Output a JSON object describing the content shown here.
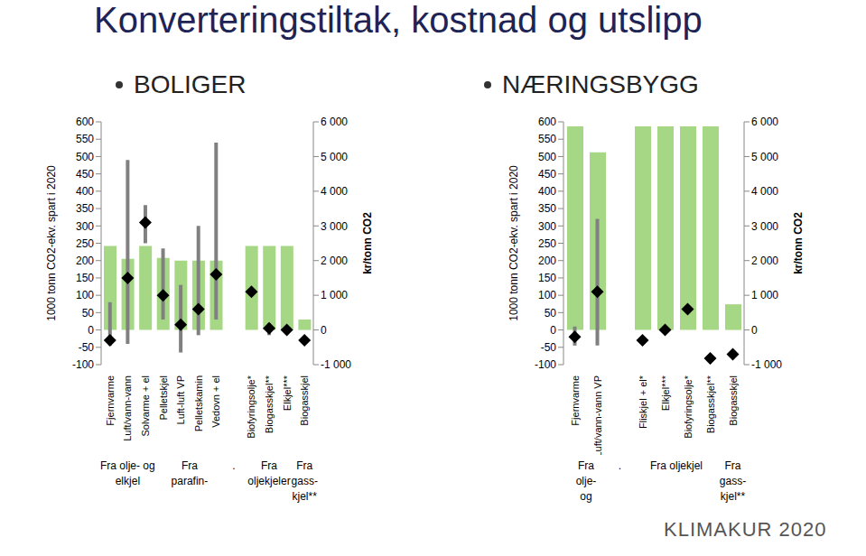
{
  "title": "Konverteringstiltak, kostnad og utslipp",
  "footer": "KLIMAKUR 2020",
  "chart_data": [
    {
      "type": "bar",
      "title": "BOLIGER",
      "ylabel": "1000 tonn CO2-ekv. spart i 2020",
      "y2label": "kr/tonn CO2",
      "categories": [
        "Fjernvarme",
        "Luft/vann-vann",
        "Solvarme + el",
        "Pelletskjel",
        "Luft-luft VP",
        "Pelletskamin",
        "Vedovn + el",
        null,
        "Biofyringsolje*",
        "Biogasskjel**",
        "Elkjel***",
        "Biogasskjel"
      ],
      "values": [
        242,
        205,
        242,
        208,
        200,
        200,
        200,
        null,
        242,
        242,
        242,
        30
      ],
      "color": "#a6d785",
      "cost": [
        -300,
        1500,
        3100,
        1000,
        150,
        600,
        1600,
        null,
        1100,
        50,
        0,
        -300
      ],
      "cost_low": [
        -450,
        -400,
        2500,
        300,
        -650,
        -150,
        300,
        null,
        null,
        -150,
        null,
        null
      ],
      "cost_high": [
        800,
        4900,
        3600,
        2350,
        1300,
        3000,
        5400,
        null,
        null,
        200,
        null,
        null
      ],
      "cost_color": "#000000",
      "range_color": "#808080",
      "ylim": [
        -100,
        600
      ],
      "yticks": [
        -100,
        -50,
        0,
        50,
        100,
        150,
        200,
        250,
        300,
        350,
        400,
        450,
        500,
        550,
        600
      ],
      "y2lim": [
        -1000,
        6000
      ],
      "y2ticks": [
        {
          "value": -1000,
          "label": "-1 000"
        },
        0,
        {
          "value": 1000,
          "label": "1 000"
        },
        {
          "value": 2000,
          "label": "2 000"
        },
        {
          "value": 3000,
          "label": "3 000"
        },
        {
          "value": 4000,
          "label": "4 000"
        },
        {
          "value": 5000,
          "label": "5 000"
        },
        {
          "value": 6000,
          "label": "6 000"
        }
      ],
      "groups": [
        {
          "label": [
            "Fra olje- og",
            "elkjel"
          ],
          "start": 0,
          "end": 2
        },
        {
          "label": [
            "Fra",
            "parafin-"
          ],
          "start": 3,
          "end": 6
        },
        {
          "label": [
            "."
          ],
          "start": 7,
          "end": 7
        },
        {
          "label": [
            "Fra",
            "oljekjeler"
          ],
          "start": 8,
          "end": 10
        },
        {
          "label": [
            "Fra",
            "gass-",
            "kjel**"
          ],
          "start": 11,
          "end": 11
        }
      ]
    },
    {
      "type": "bar",
      "title": "NÆRINGSBYGG",
      "ylabel": "1000 tonn CO2-ekv. spart i 2020",
      "y2label": "kr/tonn CO2",
      "categories": [
        "Fjernvarme",
        "Luft/vann-vann VP",
        null,
        "Fliskjel + el*",
        "Elkjel***",
        "Biofyringsolje*",
        "Biogasskjel**",
        "Biogasskjel"
      ],
      "values": [
        587,
        512,
        null,
        587,
        587,
        587,
        587,
        74
      ],
      "color": "#a6d785",
      "cost": [
        -200,
        1100,
        null,
        -300,
        0,
        600,
        -820,
        -700
      ],
      "cost_low": [
        -450,
        -450,
        null,
        null,
        null,
        null,
        null,
        null
      ],
      "cost_high": [
        100,
        3200,
        null,
        null,
        null,
        null,
        null,
        null
      ],
      "cost_color": "#000000",
      "range_color": "#808080",
      "ylim": [
        -100,
        600
      ],
      "yticks": [
        -100,
        -50,
        0,
        50,
        100,
        150,
        200,
        250,
        300,
        350,
        400,
        450,
        500,
        550,
        600
      ],
      "y2lim": [
        -1000,
        6000
      ],
      "y2ticks": [
        {
          "value": -1000,
          "label": "-1 000"
        },
        0,
        {
          "value": 1000,
          "label": "1 000"
        },
        {
          "value": 2000,
          "label": "2 000"
        },
        {
          "value": 3000,
          "label": "3 000"
        },
        {
          "value": 4000,
          "label": "4 000"
        },
        {
          "value": 5000,
          "label": "5 000"
        },
        {
          "value": 6000,
          "label": "6 000"
        }
      ],
      "groups": [
        {
          "label": [
            "Fra",
            "olje-",
            "og"
          ],
          "start": 0,
          "end": 1
        },
        {
          "label": [
            "."
          ],
          "start": 2,
          "end": 2
        },
        {
          "label": [
            "Fra oljekjel"
          ],
          "start": 3,
          "end": 6
        },
        {
          "label": [
            "Fra",
            "gass-",
            "kjel**"
          ],
          "start": 7,
          "end": 7
        }
      ]
    }
  ]
}
